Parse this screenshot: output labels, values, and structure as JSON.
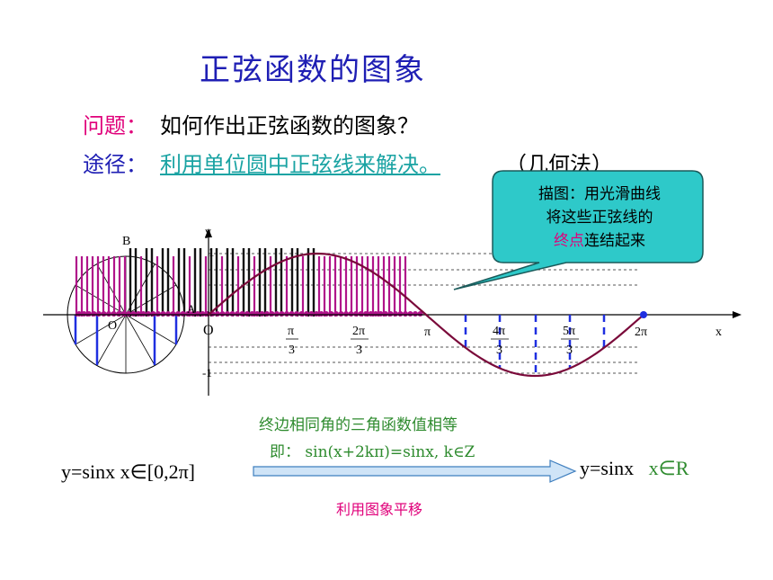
{
  "title": "正弦函数的图象",
  "question": {
    "label": "问题：",
    "text": "如何作出正弦函数的图象？"
  },
  "method": {
    "label": "途径：",
    "text": "利用单位圆中正弦线来解决。",
    "note": "（几何法）"
  },
  "callout": {
    "line1": "描图：用光滑曲线",
    "line2": "将这些正弦线的",
    "highlight": "终点",
    "line3_rest": "连结起来"
  },
  "graph": {
    "axis_x": "x",
    "axis_y": "y",
    "origin_unit_circle": "O",
    "origin_main": "O",
    "point_a": "A",
    "point_b": "B",
    "y_one": "1",
    "y_neg_one": "-1",
    "tick_labels": {
      "pi_over_3_num": "π",
      "pi_over_3_den": "3",
      "two_pi_over_3_num": "2π",
      "two_pi_over_3_den": "3",
      "pi": "π",
      "four_pi_over_3_num": "4π",
      "four_pi_over_3_den": "3",
      "five_pi_over_3_num": "5π",
      "five_pi_over_3_den": "3",
      "two_pi": "2π"
    }
  },
  "bottom": {
    "top_note": "终边相同角的三角函数值相等",
    "mid_note": "即：  sin(x+2kπ)=sinx,  k∈Z",
    "left_eq": "y=sinx   x∈[0,2π]",
    "right_eq": "y=sinx",
    "right_domain": "x∈R",
    "bottom_note": "利用图象平移"
  },
  "colors": {
    "title": "#1f1fb4",
    "magenta": "#e0007a",
    "teal": "#1aa3a3",
    "callout_fill": "#2ec9c9",
    "curve": "#7a0a3a",
    "sine_line": "#1f2fe0",
    "green": "#2e8b2e"
  }
}
